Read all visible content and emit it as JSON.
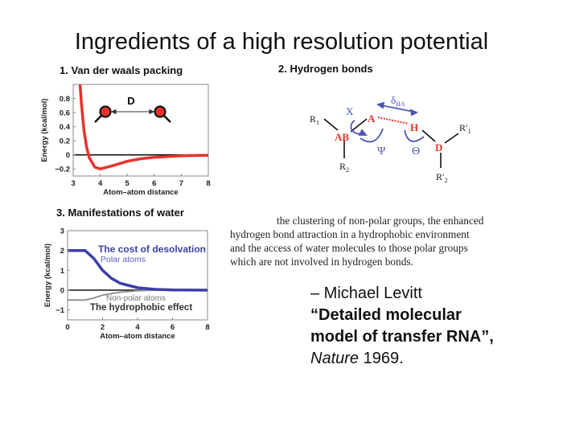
{
  "slide": {
    "title": "Ingredients of a high resolution potential"
  },
  "panels": {
    "vdw": {
      "title": "1. Van der waals packing",
      "distance_label": "D"
    },
    "hbond": {
      "title": "2. Hydrogen bonds",
      "labels": {
        "A": "A",
        "H": "H",
        "AB": "AB",
        "D": "D",
        "R": "R",
        "Rp": "R′",
        "sub1": "1",
        "sub2": "2",
        "chi": "X",
        "delta": "δ",
        "delta_sub": "HA",
        "psi": "Ψ",
        "theta": "Θ"
      },
      "colors": {
        "atoms": "#e8322b",
        "angles": "#4a55b8"
      }
    },
    "water": {
      "title": "3. Manifestations of water"
    }
  },
  "quote": {
    "lines": [
      "the clustering of non-polar groups, the enhanced",
      "hydrogen bond attraction in a hydrophobic environment",
      "and the access of water molecules to those polar groups",
      "which are not involved in hydrogen bonds."
    ]
  },
  "citation": {
    "dash_author": "– Michael Levitt",
    "title_bold": "“Detailed molecular model of transfer RNA”,",
    "journal": "Nature",
    "year": " 1969."
  },
  "chart_data": [
    {
      "type": "line",
      "title": "",
      "xlabel": "Atom–atom distance",
      "ylabel": "Energy (kcal/mol)",
      "xlim": [
        3,
        8
      ],
      "ylim": [
        -0.3,
        1.0
      ],
      "xticks": [
        "3",
        "4",
        "5",
        "6",
        "7",
        "8"
      ],
      "yticks": [
        "−0.2",
        "0",
        "0.2",
        "0.4",
        "0.6",
        "0.8"
      ],
      "ytick_values": [
        -0.2,
        0,
        0.2,
        0.4,
        0.6,
        0.8
      ],
      "grid": false,
      "zero_line": true,
      "series": [
        {
          "color": "#e8322b",
          "x": [
            3.25,
            3.3,
            3.4,
            3.5,
            3.6,
            3.8,
            4.0,
            4.5,
            5.0,
            5.5,
            6.0,
            7.0,
            8.0
          ],
          "y": [
            1.02,
            0.745,
            0.347,
            0.102,
            -0.045,
            -0.174,
            -0.2,
            -0.149,
            -0.091,
            -0.055,
            -0.034,
            -0.014,
            -0.006
          ]
        }
      ]
    },
    {
      "type": "line",
      "title": "",
      "xlabel": "Atom–atom distance",
      "ylabel": "Energy (kcal/mol)",
      "xlim": [
        0,
        8
      ],
      "ylim": [
        -1.5,
        3
      ],
      "xticks": [
        "0",
        "2",
        "4",
        "6",
        "8"
      ],
      "yticks": [
        "−1",
        "0",
        "1",
        "2",
        "3"
      ],
      "ytick_values": [
        -1,
        0,
        1,
        2,
        3
      ],
      "grid": false,
      "zero_line": true,
      "annotations": [
        {
          "text": "The cost of desolvation",
          "color": "#3b3fa8"
        },
        {
          "text": "Polar atoms",
          "color": "#5a5fc0"
        },
        {
          "text": "Non-polar atoms",
          "color": "#777777"
        },
        {
          "text": "The hydrophobic effect",
          "color": "#333333"
        }
      ],
      "series": [
        {
          "name": "Polar atoms",
          "color": "#3b3fa8",
          "x": [
            0,
            1,
            1.5,
            2,
            2.5,
            3,
            4,
            5,
            6,
            8
          ],
          "y": [
            2,
            2,
            1.6,
            1.0,
            0.6,
            0.35,
            0.12,
            0.04,
            0.01,
            0
          ]
        },
        {
          "name": "Non-polar atoms",
          "color": "#8a8a8a",
          "x": [
            0,
            1,
            1.5,
            2,
            3,
            4,
            5,
            8
          ],
          "y": [
            -0.5,
            -0.5,
            -0.4,
            -0.25,
            -0.1,
            -0.03,
            0,
            0
          ]
        }
      ]
    }
  ]
}
